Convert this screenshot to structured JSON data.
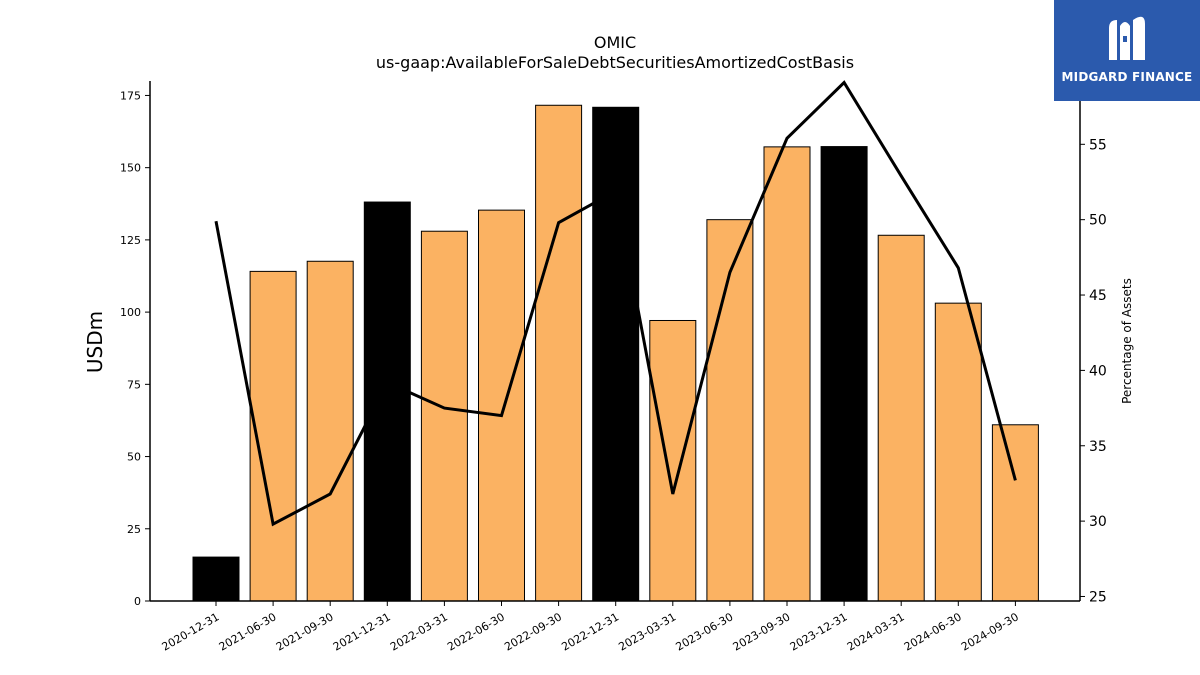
{
  "logo": {
    "text": "MIDGARD FINANCE",
    "background": "#2b5aad"
  },
  "chart_data": {
    "type": "bar",
    "title": "OMIC",
    "subtitle": "us-gaap:AvailableForSaleDebtSecuritiesAmortizedCostBasis",
    "ylabel": "USDm",
    "y2label": "Percentage of Assets",
    "ylim": [
      0,
      180
    ],
    "y2lim": [
      24.7,
      59.2
    ],
    "yticks": [
      0,
      25,
      50,
      75,
      100,
      125,
      150,
      175
    ],
    "y2ticks": [
      25,
      30,
      35,
      40,
      45,
      50,
      55
    ],
    "categories": [
      "2020-12-31",
      "2021-06-30",
      "2021-09-30",
      "2021-12-31",
      "2022-03-31",
      "2022-06-30",
      "2022-09-30",
      "2022-12-31",
      "2023-03-31",
      "2023-06-30",
      "2023-09-30",
      "2023-12-31",
      "2024-03-31",
      "2024-06-30",
      "2024-09-30"
    ],
    "series": [
      {
        "type": "bar",
        "axis": "left",
        "values": [
          15.2,
          114.1,
          117.6,
          138.1,
          128.0,
          135.3,
          171.6,
          170.9,
          97.1,
          132.0,
          157.2,
          157.3,
          126.6,
          103.1,
          61.0
        ],
        "colors": [
          "#000000",
          "#fbb262",
          "#fbb262",
          "#000000",
          "#fbb262",
          "#fbb262",
          "#fbb262",
          "#000000",
          "#fbb262",
          "#fbb262",
          "#fbb262",
          "#000000",
          "#fbb262",
          "#fbb262",
          "#fbb262"
        ]
      },
      {
        "type": "line",
        "axis": "right",
        "color": "#000000",
        "values": [
          49.9,
          29.8,
          31.8,
          39.2,
          37.5,
          37.0,
          49.8,
          51.9,
          31.8,
          46.5,
          55.4,
          59.1,
          52.9,
          46.8,
          32.7
        ]
      }
    ],
    "grid": false,
    "legend": "none"
  }
}
